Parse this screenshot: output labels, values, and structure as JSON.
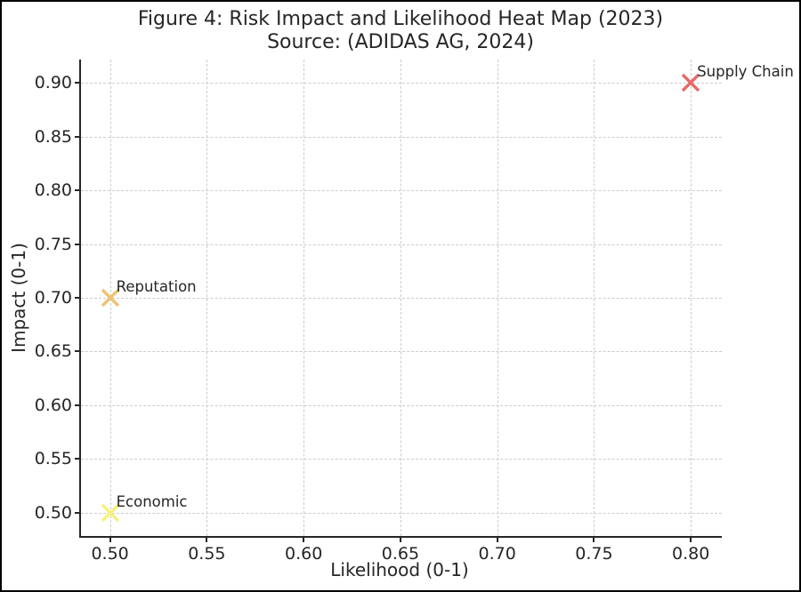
{
  "figure": {
    "title": "Figure 4: Risk Impact and Likelihood Heat Map (2023)",
    "subtitle": "Source: (ADIDAS AG, 2024)"
  },
  "chart_data": {
    "type": "scatter",
    "marker_style": "x",
    "title": "Figure 4: Risk Impact and Likelihood Heat Map (2023)",
    "subtitle": "Source: (ADIDAS AG, 2024)",
    "xlabel": "Likelihood (0-1)",
    "ylabel": "Impact (0-1)",
    "xlim": [
      0.485,
      0.816
    ],
    "ylim": [
      0.4785,
      0.9215
    ],
    "x_ticks": [
      0.5,
      0.55,
      0.6,
      0.65,
      0.7,
      0.75,
      0.8
    ],
    "y_ticks": [
      0.5,
      0.55,
      0.6,
      0.65,
      0.7,
      0.75,
      0.8,
      0.85,
      0.9
    ],
    "tick_decimals": 2,
    "grid": true,
    "grid_style": "dashed",
    "legend": "none",
    "points": [
      {
        "label": "Supply Chain",
        "x": 0.8,
        "y": 0.9,
        "color": "#e96a6a"
      },
      {
        "label": "Reputation",
        "x": 0.5,
        "y": 0.7,
        "color": "#f0c173"
      },
      {
        "label": "Economic",
        "x": 0.5,
        "y": 0.5,
        "color": "#f6f27c"
      }
    ],
    "colors": {
      "grid": "#cccccc",
      "axis": "#262626",
      "text": "#262626",
      "background": "#ffffff",
      "frame_border": "#000000"
    }
  }
}
